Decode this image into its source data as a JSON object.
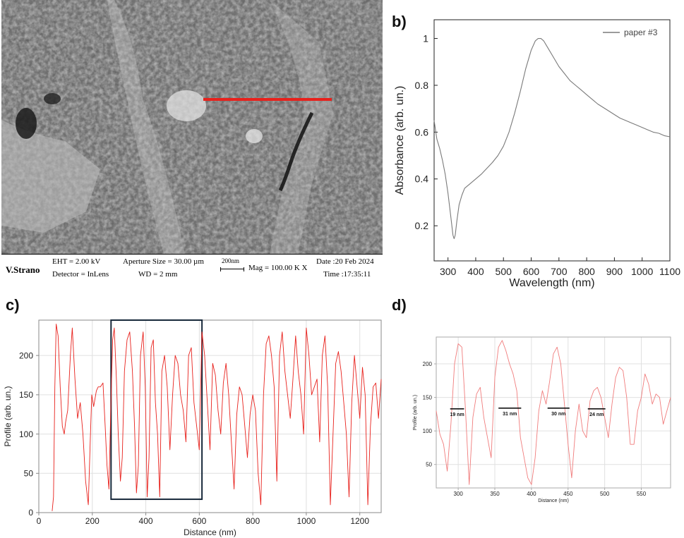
{
  "panels": {
    "a": {
      "label": "a)",
      "sem_info": {
        "operator": "V.Strano",
        "eht": "EHT =  2.00 kV",
        "detector": "Detector = InLens",
        "aperture": "Aperture Size = 30.00 µm",
        "wd": "WD =    2 mm",
        "scale": "200nm",
        "mag": "Mag = 100.00 K X",
        "date": "Date :20 Feb 2024",
        "time": "Time :17:35:11"
      },
      "line_color": "#e8211c"
    },
    "b": {
      "label": "b)"
    },
    "c": {
      "label": "c)"
    },
    "d": {
      "label": "d)"
    }
  },
  "chart_data": [
    {
      "id": "b",
      "type": "line",
      "xlabel": "Wavelength (nm)",
      "ylabel": "Absorbance (arb. un.)",
      "xlim": [
        250,
        1100
      ],
      "ylim": [
        0.05,
        1.08
      ],
      "xticks": [
        300,
        400,
        500,
        600,
        700,
        800,
        900,
        1000,
        1100
      ],
      "yticks": [
        0.2,
        0.4,
        0.6,
        0.8,
        1
      ],
      "ytick_labels": [
        "0.2",
        "0.4",
        "0.6",
        "0.8",
        "1"
      ],
      "legend": "top-right",
      "grid": false,
      "color": "#7a7a7a",
      "series": [
        {
          "name": "paper #3",
          "x": [
            250,
            260,
            270,
            280,
            290,
            300,
            310,
            318,
            322,
            326,
            332,
            340,
            350,
            360,
            370,
            380,
            400,
            420,
            440,
            460,
            480,
            500,
            520,
            540,
            560,
            580,
            600,
            615,
            625,
            635,
            645,
            660,
            680,
            700,
            720,
            740,
            760,
            780,
            800,
            820,
            840,
            860,
            880,
            900,
            920,
            940,
            960,
            980,
            1000,
            1020,
            1040,
            1060,
            1080,
            1100
          ],
          "y": [
            0.65,
            0.57,
            0.53,
            0.48,
            0.42,
            0.34,
            0.24,
            0.16,
            0.145,
            0.16,
            0.22,
            0.29,
            0.33,
            0.36,
            0.37,
            0.38,
            0.4,
            0.42,
            0.445,
            0.47,
            0.5,
            0.54,
            0.6,
            0.68,
            0.77,
            0.87,
            0.95,
            0.99,
            1.0,
            1.0,
            0.99,
            0.96,
            0.92,
            0.88,
            0.85,
            0.82,
            0.8,
            0.78,
            0.76,
            0.74,
            0.72,
            0.705,
            0.69,
            0.675,
            0.66,
            0.65,
            0.64,
            0.63,
            0.62,
            0.61,
            0.6,
            0.595,
            0.585,
            0.58
          ]
        }
      ]
    },
    {
      "id": "c",
      "type": "line",
      "xlabel": "Distance (nm)",
      "ylabel": "Profile (arb. un.)",
      "xlim": [
        0,
        1280
      ],
      "ylim": [
        0,
        245
      ],
      "xticks": [
        0,
        200,
        400,
        600,
        800,
        1000,
        1200
      ],
      "yticks": [
        0,
        50,
        100,
        150,
        200
      ],
      "grid": true,
      "color": "#e8211c",
      "highlight_box": {
        "x": [
          270,
          610
        ],
        "y": [
          17,
          245
        ]
      },
      "series": [
        {
          "x": [
            50,
            55,
            60,
            65,
            72,
            80,
            88,
            95,
            100,
            108,
            118,
            125,
            135,
            145,
            155,
            165,
            175,
            185,
            192,
            198,
            205,
            215,
            222,
            230,
            240,
            248,
            255,
            262,
            270,
            276,
            282,
            290,
            297,
            305,
            312,
            320,
            330,
            340,
            350,
            358,
            365,
            372,
            380,
            390,
            398,
            405,
            412,
            420,
            428,
            436,
            444,
            452,
            460,
            470,
            480,
            490,
            500,
            510,
            520,
            530,
            540,
            550,
            560,
            570,
            580,
            590,
            600,
            610,
            620,
            630,
            640,
            650,
            660,
            670,
            680,
            690,
            700,
            710,
            720,
            730,
            740,
            750,
            760,
            770,
            780,
            790,
            800,
            810,
            820,
            830,
            840,
            850,
            860,
            870,
            880,
            890,
            900,
            910,
            920,
            930,
            940,
            950,
            960,
            970,
            980,
            990,
            1000,
            1010,
            1020,
            1030,
            1040,
            1050,
            1060,
            1070,
            1080,
            1090,
            1100,
            1110,
            1120,
            1130,
            1140,
            1150,
            1160,
            1170,
            1180,
            1190,
            1200,
            1210,
            1220,
            1230,
            1240,
            1250,
            1260,
            1270,
            1280
          ],
          "y": [
            2,
            20,
            160,
            240,
            225,
            160,
            110,
            100,
            115,
            130,
            200,
            235,
            170,
            120,
            140,
            100,
            40,
            10,
            90,
            150,
            135,
            155,
            160,
            160,
            165,
            110,
            60,
            30,
            145,
            220,
            235,
            170,
            100,
            40,
            70,
            180,
            220,
            230,
            180,
            110,
            25,
            60,
            200,
            230,
            160,
            20,
            70,
            210,
            220,
            140,
            100,
            20,
            180,
            200,
            160,
            80,
            150,
            200,
            190,
            150,
            130,
            90,
            200,
            210,
            140,
            110,
            80,
            230,
            200,
            140,
            80,
            190,
            175,
            130,
            100,
            165,
            190,
            150,
            90,
            30,
            125,
            160,
            150,
            110,
            70,
            125,
            150,
            130,
            50,
            10,
            150,
            215,
            225,
            200,
            160,
            40,
            200,
            230,
            180,
            150,
            120,
            170,
            225,
            180,
            150,
            100,
            235,
            200,
            150,
            160,
            170,
            90,
            200,
            225,
            160,
            10,
            100,
            190,
            205,
            180,
            140,
            100,
            20,
            140,
            200,
            160,
            120,
            185,
            150,
            10,
            110,
            160,
            165,
            120,
            170
          ]
        }
      ]
    },
    {
      "id": "d",
      "type": "line",
      "xlabel": "Distance (nm)",
      "ylabel": "Profile (arb. un.)",
      "xlim": [
        270,
        590
      ],
      "ylim": [
        15,
        240
      ],
      "xticks": [
        300,
        350,
        400,
        450,
        500,
        550
      ],
      "yticks": [
        50,
        100,
        150,
        200
      ],
      "grid": true,
      "color": "#f07c7c",
      "annotations": [
        {
          "label": "19 nm",
          "x": [
            289,
            308
          ],
          "y": 133
        },
        {
          "label": "31 nm",
          "x": [
            355,
            386
          ],
          "y": 134
        },
        {
          "label": "30 nm",
          "x": [
            422,
            452
          ],
          "y": 134
        },
        {
          "label": "24 nm",
          "x": [
            477,
            501
          ],
          "y": 133
        }
      ],
      "series": [
        {
          "x": [
            270,
            275,
            280,
            285,
            290,
            295,
            300,
            305,
            310,
            315,
            320,
            325,
            330,
            335,
            340,
            345,
            350,
            355,
            360,
            365,
            370,
            375,
            380,
            385,
            390,
            395,
            400,
            405,
            410,
            415,
            420,
            425,
            430,
            435,
            440,
            445,
            450,
            455,
            460,
            465,
            470,
            475,
            480,
            485,
            490,
            495,
            500,
            505,
            510,
            515,
            520,
            525,
            530,
            535,
            540,
            545,
            550,
            555,
            560,
            565,
            570,
            575,
            580,
            585,
            590
          ],
          "y": [
            130,
            95,
            80,
            40,
            110,
            200,
            230,
            225,
            130,
            20,
            120,
            155,
            165,
            120,
            90,
            60,
            180,
            225,
            235,
            220,
            200,
            185,
            160,
            90,
            60,
            30,
            20,
            60,
            130,
            160,
            140,
            175,
            215,
            225,
            200,
            140,
            80,
            30,
            100,
            140,
            100,
            90,
            145,
            160,
            165,
            150,
            120,
            90,
            140,
            180,
            195,
            190,
            150,
            80,
            80,
            130,
            150,
            185,
            170,
            140,
            155,
            150,
            110,
            130,
            150
          ]
        }
      ]
    }
  ]
}
